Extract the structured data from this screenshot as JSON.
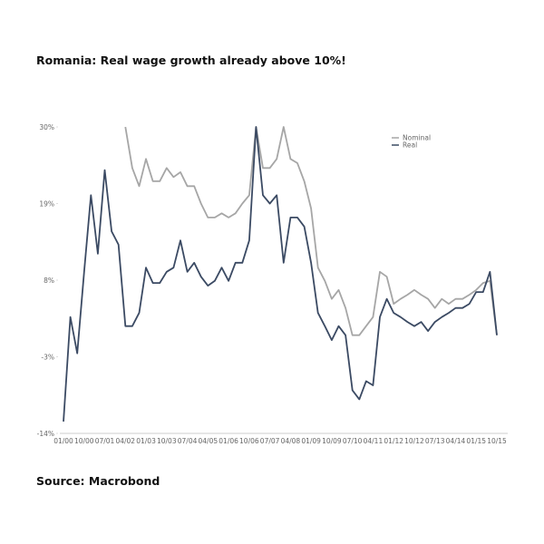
{
  "chart_data": {
    "type": "line",
    "title": "Romania: Real wage growth already above 10%!",
    "source": "Source: Macrobond",
    "categories": [
      "01/00",
      null,
      null,
      "10/00",
      null,
      null,
      "07/01",
      null,
      null,
      "04/02",
      null,
      null,
      "01/03",
      null,
      null,
      "10/03",
      null,
      null,
      "07/04",
      null,
      null,
      "04/05",
      null,
      null,
      "01/06",
      null,
      null,
      "10/06",
      null,
      null,
      "07/07",
      null,
      null,
      "04/08",
      null,
      null,
      "01/09",
      null,
      null,
      "10/09",
      null,
      null,
      "07/10",
      null,
      null,
      "04/11",
      null,
      null,
      "01/12",
      null,
      null,
      "10/12",
      null,
      null,
      "07/13",
      null,
      null,
      "04/14",
      null,
      null,
      "01/15",
      null,
      null,
      "10/15"
    ],
    "series": [
      {
        "name": "Nominal",
        "color": "#a6a6a6",
        "values": [
          null,
          null,
          null,
          null,
          null,
          null,
          null,
          null,
          null,
          30,
          24.1,
          21.5,
          25.4,
          22.2,
          22.2,
          24.1,
          22.8,
          23.5,
          21.5,
          21.5,
          19.0,
          17.0,
          17.0,
          17.6,
          17.0,
          17.6,
          19.0,
          20.2,
          30,
          24.1,
          24.1,
          25.4,
          30,
          25.4,
          24.8,
          22.2,
          18.3,
          9.8,
          7.9,
          5.3,
          6.6,
          4.0,
          0.1,
          0.1,
          1.4,
          2.7,
          9.2,
          8.5,
          4.6,
          5.3,
          5.9,
          6.6,
          5.9,
          5.3,
          4.0,
          5.3,
          4.6,
          5.3,
          5.3,
          5.9,
          6.6,
          7.6,
          7.9,
          0.1
        ]
      },
      {
        "name": "Real",
        "color": "#3b4a63",
        "values": [
          -12.3,
          2.7,
          -2.5,
          9.2,
          20.2,
          11.8,
          23.8,
          15.0,
          13.1,
          1.4,
          1.4,
          3.3,
          9.8,
          7.6,
          7.6,
          9.2,
          9.8,
          13.7,
          9.2,
          10.5,
          8.5,
          7.2,
          7.9,
          9.8,
          7.9,
          10.5,
          10.5,
          13.7,
          30,
          20.2,
          19.0,
          20.2,
          10.5,
          17.0,
          17.0,
          15.7,
          10.5,
          3.3,
          1.4,
          -0.6,
          1.4,
          0.1,
          -7.8,
          -9.1,
          -6.5,
          -7.1,
          2.7,
          5.3,
          3.3,
          2.7,
          2.0,
          1.4,
          2.0,
          0.7,
          2.0,
          2.7,
          3.3,
          4.0,
          4.0,
          4.6,
          6.3,
          6.3,
          9.2,
          0.1
        ]
      }
    ],
    "ylim": [
      -14,
      30
    ],
    "yticks": [
      {
        "value": -14,
        "label": "-14%"
      },
      {
        "value": -3,
        "label": "-3%"
      },
      {
        "value": 8,
        "label": "8%"
      },
      {
        "value": 19,
        "label": "19%"
      },
      {
        "value": 30,
        "label": "30%"
      }
    ],
    "legend": "upper right"
  }
}
